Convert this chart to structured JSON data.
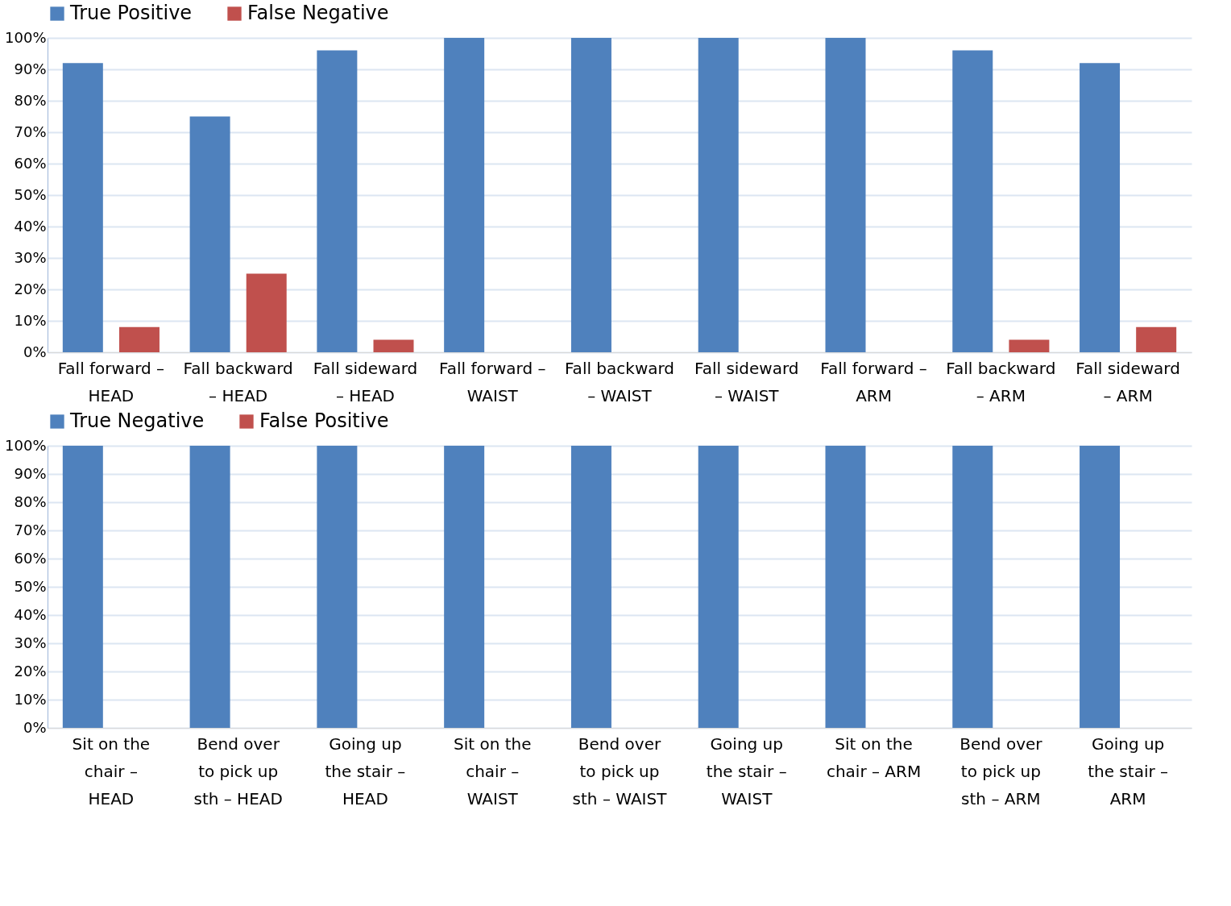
{
  "chart_data": [
    {
      "type": "bar",
      "categories": [
        "Fall forward –\nHEAD",
        "Fall backward\n– HEAD",
        "Fall sideward\n– HEAD",
        "Fall forward –\nWAIST",
        "Fall backward\n– WAIST",
        "Fall sideward\n– WAIST",
        "Fall forward –\nARM",
        "Fall backward\n– ARM",
        "Fall sideward\n– ARM"
      ],
      "series": [
        {
          "name": "True Positive",
          "color": "#4f81bd",
          "values": [
            92,
            75,
            96,
            100,
            100,
            100,
            100,
            96,
            92
          ]
        },
        {
          "name": "False Negative",
          "color": "#c0504d",
          "values": [
            8,
            25,
            4,
            0,
            0,
            0,
            0,
            4,
            8
          ]
        }
      ],
      "ylim": [
        0,
        100
      ],
      "yticks": [
        {
          "value": 0,
          "label": "0%"
        },
        {
          "value": 10,
          "label": "10%"
        },
        {
          "value": 20,
          "label": "20%"
        },
        {
          "value": 30,
          "label": "30%"
        },
        {
          "value": 40,
          "label": "40%"
        },
        {
          "value": 50,
          "label": "50%"
        },
        {
          "value": 60,
          "label": "60%"
        },
        {
          "value": 70,
          "label": "70%"
        },
        {
          "value": 80,
          "label": "80%"
        },
        {
          "value": 90,
          "label": "90%"
        },
        {
          "value": 100,
          "label": "100%"
        }
      ],
      "grid": "y",
      "legend": "top"
    },
    {
      "type": "bar",
      "categories": [
        "Sit on the\nchair –\nHEAD",
        "Bend over\nto pick up\nsth – HEAD",
        "Going up\nthe stair –\nHEAD",
        "Sit on the\nchair –\nWAIST",
        "Bend over\nto pick up\nsth – WAIST",
        "Going up\nthe stair –\nWAIST",
        "Sit on the\nchair – ARM",
        "Bend over\nto pick up\nsth – ARM",
        "Going up\nthe stair –\nARM"
      ],
      "series": [
        {
          "name": "True Negative",
          "color": "#4f81bd",
          "values": [
            100,
            100,
            100,
            100,
            100,
            100,
            100,
            100,
            100
          ]
        },
        {
          "name": "False Positive",
          "color": "#c0504d",
          "values": [
            0,
            0,
            0,
            0,
            0,
            0,
            0,
            0,
            0
          ]
        }
      ],
      "ylim": [
        0,
        100
      ],
      "yticks": [
        {
          "value": 0,
          "label": "0%"
        },
        {
          "value": 10,
          "label": "10%"
        },
        {
          "value": 20,
          "label": "20%"
        },
        {
          "value": 30,
          "label": "30%"
        },
        {
          "value": 40,
          "label": "40%"
        },
        {
          "value": 50,
          "label": "50%"
        },
        {
          "value": 60,
          "label": "60%"
        },
        {
          "value": 70,
          "label": "70%"
        },
        {
          "value": 80,
          "label": "80%"
        },
        {
          "value": 90,
          "label": "90%"
        },
        {
          "value": 100,
          "label": "100%"
        }
      ],
      "grid": "y",
      "legend": "top"
    }
  ]
}
